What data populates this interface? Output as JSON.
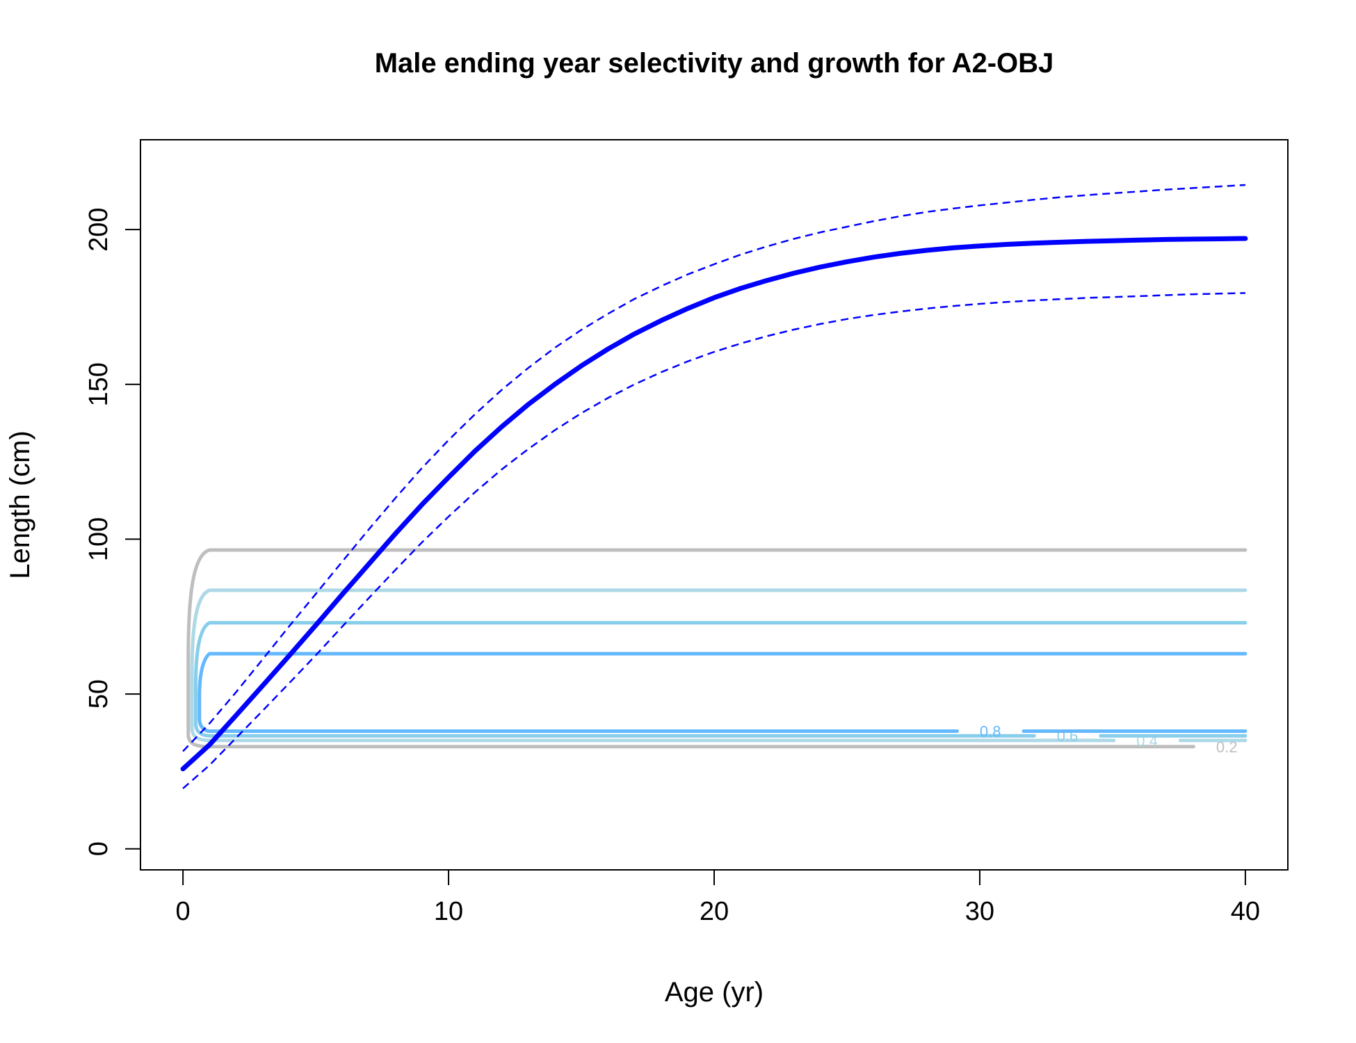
{
  "chart_data": {
    "type": "line",
    "title": "Male ending year selectivity and growth for A2-OBJ",
    "xlabel": "Age (yr)",
    "ylabel": "Length (cm)",
    "xlim": [
      -1.6,
      41.6
    ],
    "ylim": [
      -6.8,
      229
    ],
    "x_ticks": [
      0,
      10,
      20,
      30,
      40
    ],
    "y_ticks": [
      0,
      50,
      100,
      150,
      200
    ],
    "grid": false,
    "legend": "none",
    "growth": {
      "color": "#0000FF",
      "mean": {
        "x": [
          0,
          1,
          2,
          3,
          4,
          5,
          6,
          7,
          8,
          9,
          10,
          11,
          12,
          13,
          14,
          15,
          16,
          17,
          18,
          19,
          20,
          21,
          22,
          23,
          24,
          25,
          26,
          27,
          28,
          29,
          30,
          31,
          32,
          33,
          34,
          35,
          36,
          37,
          38,
          39,
          40
        ],
        "y": [
          25.8,
          33.6,
          43.1,
          52.7,
          62.4,
          72.2,
          82.2,
          92.0,
          101.8,
          111.2,
          120.0,
          128.5,
          136.3,
          143.5,
          150.0,
          156.0,
          161.4,
          166.3,
          170.6,
          174.5,
          178.0,
          181.0,
          183.6,
          185.9,
          187.9,
          189.6,
          191.1,
          192.3,
          193.3,
          194.1,
          194.7,
          195.2,
          195.6,
          195.9,
          196.2,
          196.4,
          196.6,
          196.8,
          196.9,
          197.0,
          197.1
        ]
      },
      "upper": {
        "x": [
          0,
          1,
          2,
          3,
          4,
          5,
          6,
          7,
          8,
          9,
          10,
          11,
          12,
          13,
          14,
          15,
          16,
          17,
          18,
          19,
          20,
          21,
          22,
          23,
          24,
          25,
          26,
          27,
          28,
          29,
          30,
          31,
          32,
          33,
          34,
          35,
          36,
          37,
          38,
          39,
          40
        ],
        "y": [
          31.5,
          40.5,
          50.6,
          61.2,
          71.9,
          82.3,
          92.8,
          103.2,
          113.3,
          123.0,
          132.0,
          140.4,
          148.2,
          155.3,
          161.8,
          167.6,
          172.8,
          177.6,
          181.7,
          185.5,
          188.8,
          191.9,
          194.6,
          197.0,
          199.1,
          200.9,
          202.7,
          204.3,
          205.7,
          206.8,
          207.8,
          208.7,
          209.6,
          210.4,
          211.1,
          211.7,
          212.3,
          212.9,
          213.4,
          213.9,
          214.4
        ]
      },
      "lower": {
        "x": [
          0,
          1,
          2,
          3,
          4,
          5,
          6,
          7,
          8,
          9,
          10,
          11,
          12,
          13,
          14,
          15,
          16,
          17,
          18,
          19,
          20,
          21,
          22,
          23,
          24,
          25,
          26,
          27,
          28,
          29,
          30,
          31,
          32,
          33,
          34,
          35,
          36,
          37,
          38,
          39,
          40
        ],
        "y": [
          19.5,
          27.0,
          35.8,
          44.6,
          53.5,
          62.5,
          71.8,
          81.0,
          90.1,
          99.0,
          107.3,
          115.2,
          122.5,
          129.1,
          135.2,
          140.7,
          145.6,
          150.0,
          153.9,
          157.4,
          160.5,
          163.2,
          165.6,
          167.7,
          169.5,
          171.1,
          172.4,
          173.5,
          174.5,
          175.3,
          176.0,
          176.6,
          177.1,
          177.5,
          177.9,
          178.2,
          178.5,
          178.8,
          179.1,
          179.3,
          179.5
        ]
      }
    },
    "selectivity_contours": [
      {
        "level": 0.2,
        "label": "0.2",
        "color": "#BEBEBE",
        "y_low": 33.0,
        "y_high": 96.5,
        "label_x": 39.3
      },
      {
        "level": 0.4,
        "label": "0.4",
        "color": "#ADD8E6",
        "y_low": 35.0,
        "y_high": 83.5,
        "label_x": 36.3
      },
      {
        "level": 0.6,
        "label": "0.6",
        "color": "#87CEEB",
        "y_low": 36.5,
        "y_high": 73.0,
        "label_x": 33.3
      },
      {
        "level": 0.8,
        "label": "0.8",
        "color": "#63B8FF",
        "y_low": 38.0,
        "y_high": 63.0,
        "label_x": 30.4
      }
    ]
  }
}
